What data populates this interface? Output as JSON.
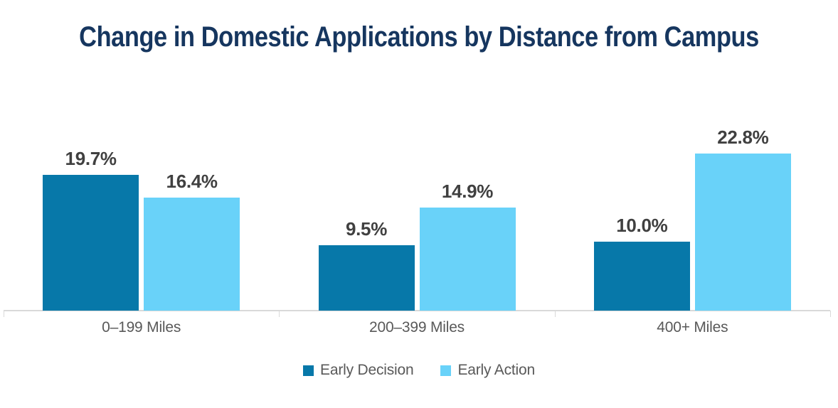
{
  "chart_data": {
    "type": "bar",
    "title": "Change in Domestic Applications by Distance from Campus",
    "categories": [
      "0–199 Miles",
      "200–399 Miles",
      "400+ Miles"
    ],
    "series": [
      {
        "name": "Early Decision",
        "values": [
          19.7,
          9.5,
          10.0
        ],
        "labels": [
          "19.7%",
          "9.5%",
          "10.0%"
        ],
        "color": "#0778a9"
      },
      {
        "name": "Early Action",
        "values": [
          16.4,
          14.9,
          22.8
        ],
        "labels": [
          "16.4%",
          "14.9%",
          "22.8%"
        ],
        "color": "#69d2f9"
      }
    ],
    "xlabel": "",
    "ylabel": "",
    "ylim": [
      0,
      24
    ],
    "grid": false,
    "data_labels": true,
    "legend_position": "bottom"
  },
  "colors": {
    "title_text": "#16365f",
    "value_label_text": "#404040",
    "category_label_text": "#595959",
    "legend_text": "#595959",
    "axis_line": "#d9d9d9",
    "background": "#ffffff"
  }
}
